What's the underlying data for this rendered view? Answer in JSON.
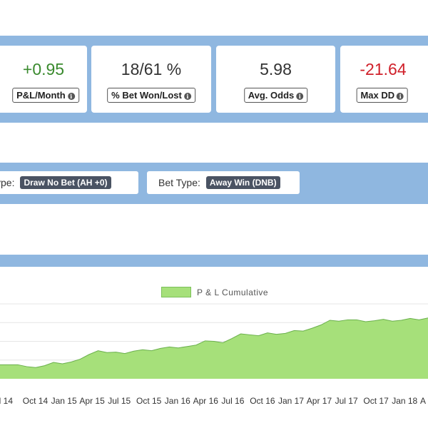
{
  "stats": {
    "cards": [
      {
        "value": "+0.95",
        "label": "P&L/Month",
        "value_color": "#3a8a2e"
      },
      {
        "value": "18/61 %",
        "label": "% Bet Won/Lost",
        "value_color": "#333333"
      },
      {
        "value": "5.98",
        "label": "Avg. Odds",
        "value_color": "#333333"
      },
      {
        "value": "-21.64",
        "label": "Max DD",
        "value_color": "#d0202a"
      }
    ],
    "info_icon": "info-icon"
  },
  "filters": [
    {
      "label": "ype:",
      "value": "Draw No Bet (AH +0)"
    },
    {
      "label": "Bet Type:",
      "value": "Away Win (DNB)"
    }
  ],
  "chart_data": {
    "type": "area",
    "legend": "P & L Cumulative",
    "x_ticks": [
      "ul 14",
      "Oct 14",
      "Jan 15",
      "Apr 15",
      "Jul 15",
      "Oct 15",
      "Jan 16",
      "Apr 16",
      "Jul 16",
      "Oct 16",
      "Jan 17",
      "Apr 17",
      "Jul 17",
      "Oct 17",
      "Jan 18",
      "A"
    ],
    "values": [
      3,
      3,
      3,
      2.6,
      2.4,
      2.8,
      3.5,
      3.2,
      3.6,
      4.2,
      5.2,
      6,
      5.6,
      5.7,
      5.4,
      5.9,
      6.2,
      6.0,
      6.5,
      6.8,
      6.6,
      6.9,
      7.2,
      8.1,
      8.0,
      7.7,
      8.6,
      9.6,
      9.4,
      9.2,
      9.8,
      9.5,
      9.7,
      10.3,
      10.2,
      10.8,
      11.5,
      12.5,
      12.3,
      12.6,
      12.6,
      12.2,
      12.4,
      12.7,
      12.3,
      12.5,
      12.9,
      12.6,
      13.0
    ],
    "ylim": [
      0,
      16
    ],
    "grid": true,
    "fill_color": "#a6e07a",
    "line_color": "#6ab04c"
  }
}
